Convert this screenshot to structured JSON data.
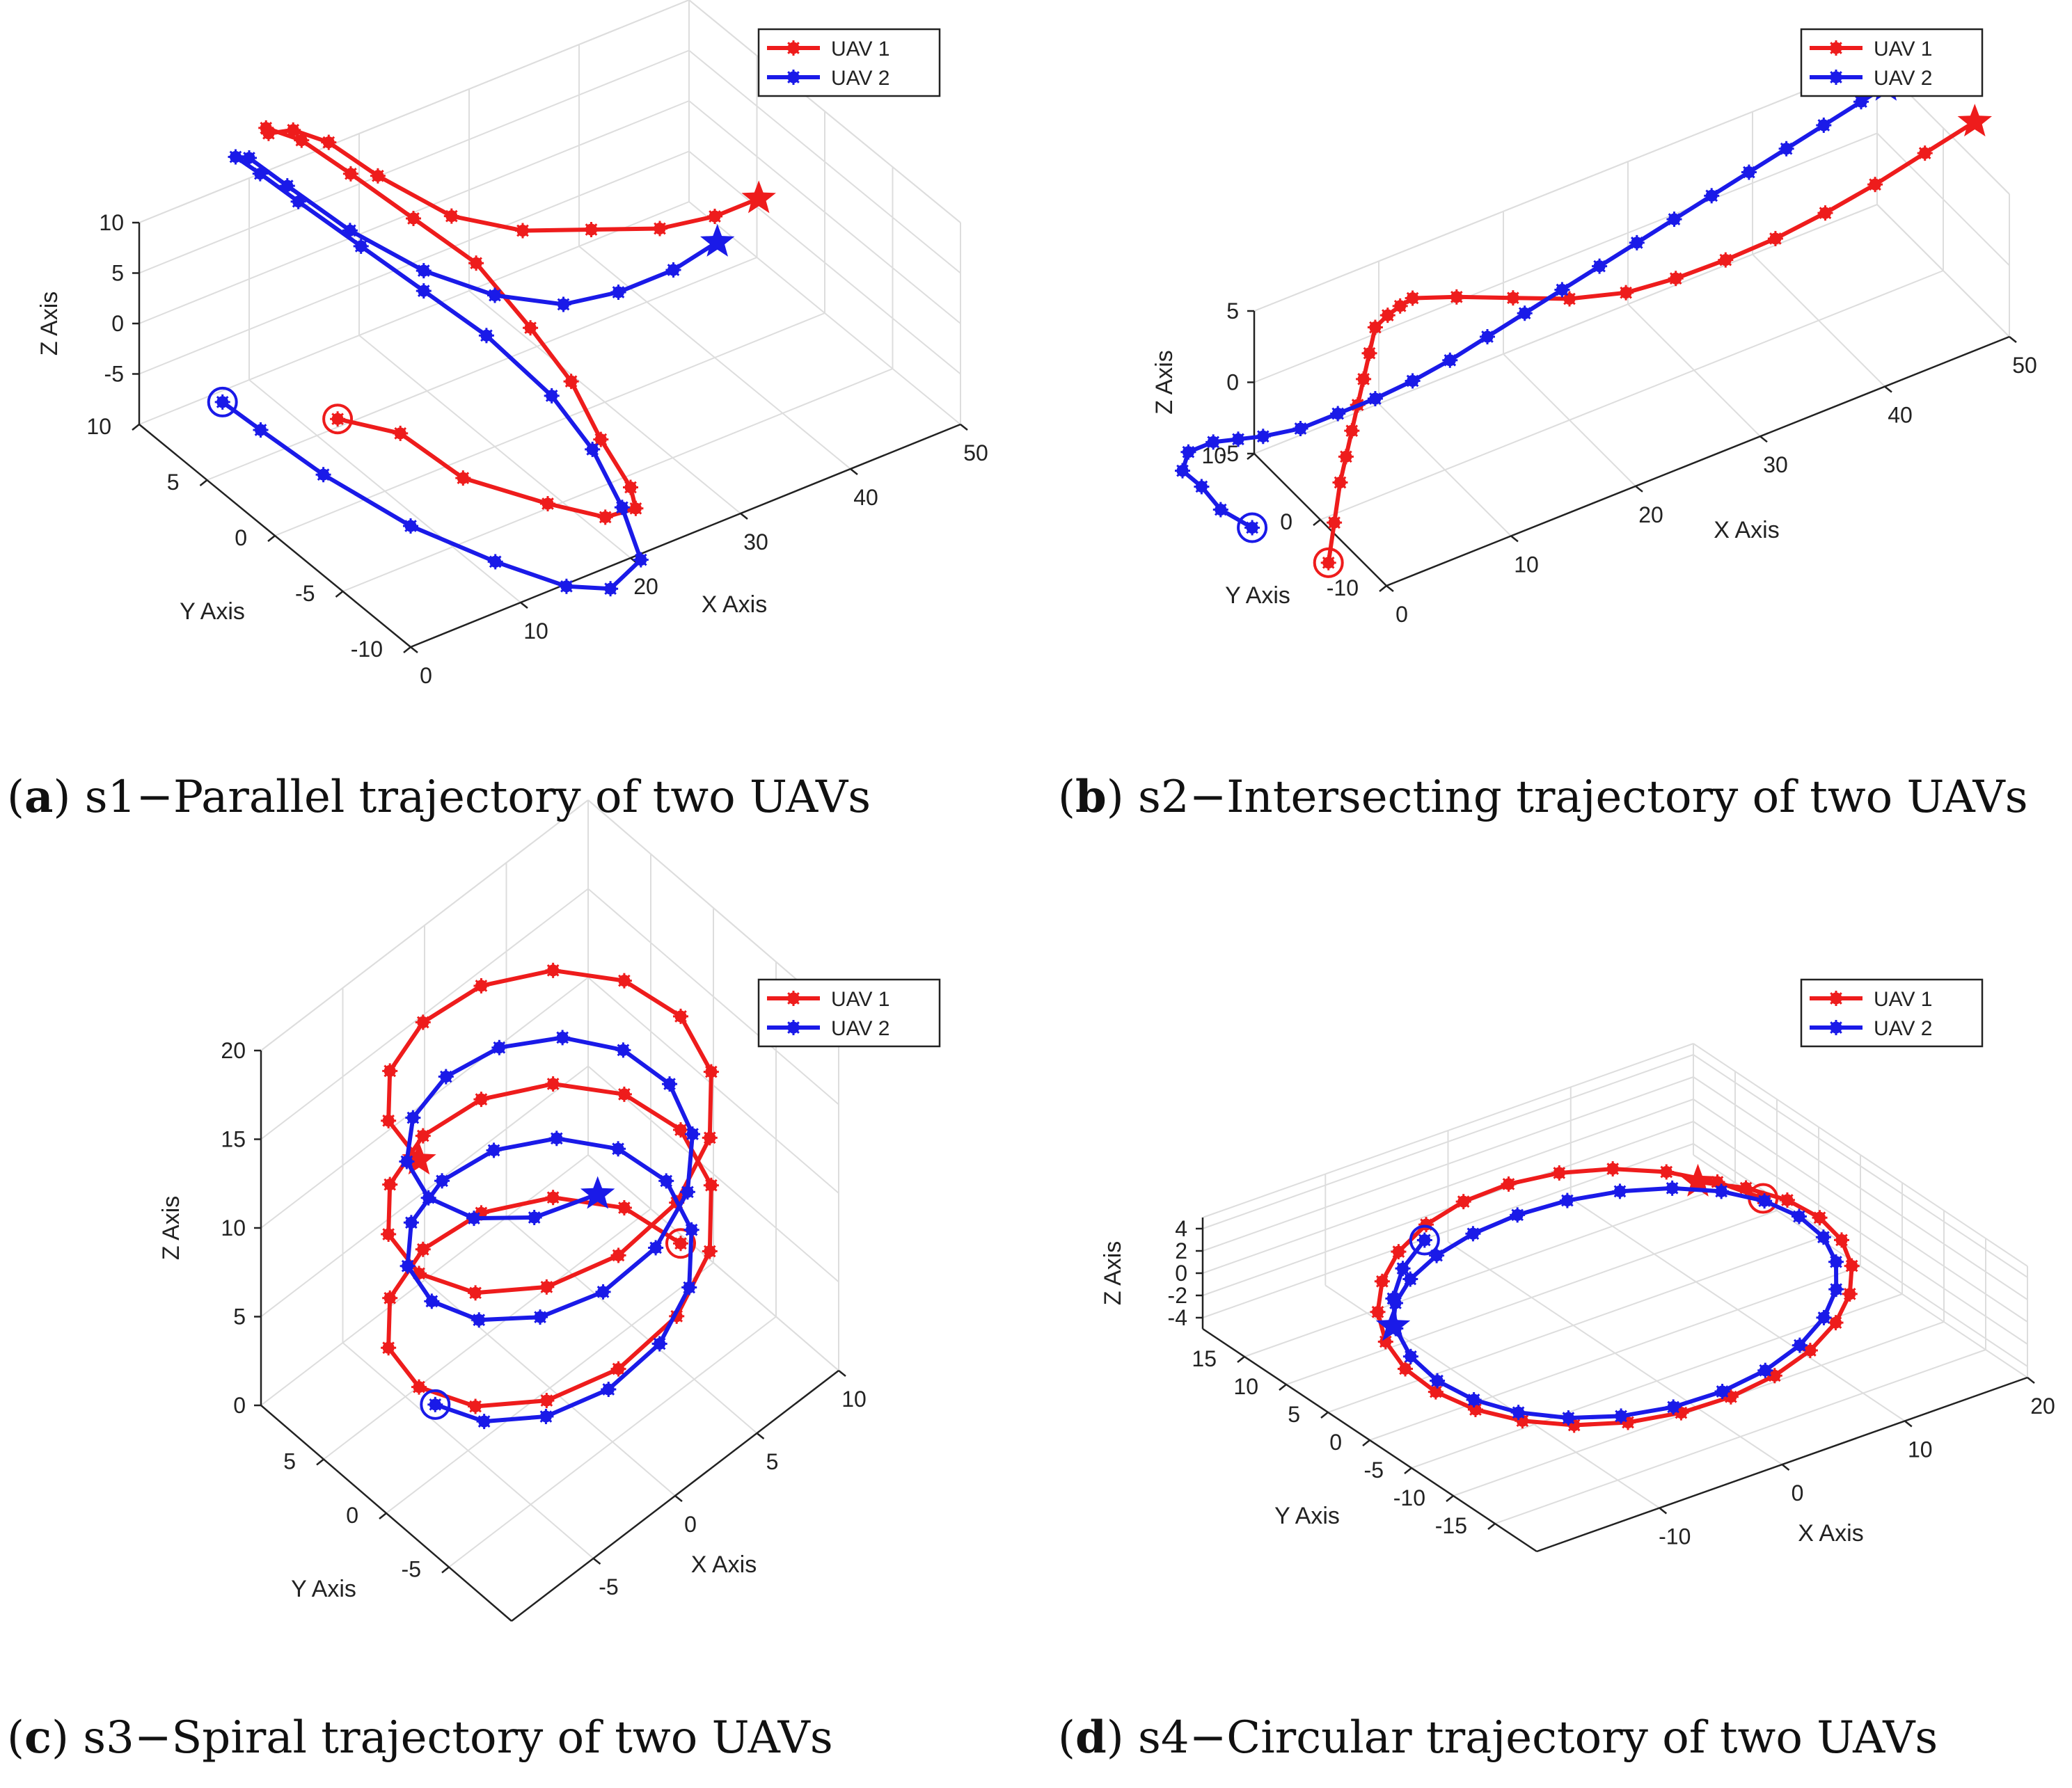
{
  "chart_data": [
    {
      "type": "line3d",
      "panel": "a",
      "caption_letter": "a",
      "caption_text": "s1−Parallel trajectory of two UAVs",
      "xlabel": "X Axis",
      "ylabel": "Y Axis",
      "zlabel": "Z Axis",
      "xlim": [
        0,
        50
      ],
      "ylim": [
        -10,
        10
      ],
      "zlim": [
        -10,
        10
      ],
      "xticks": [
        0,
        10,
        20,
        30,
        40,
        50
      ],
      "yticks": [
        -10,
        -5,
        0,
        5,
        10
      ],
      "zticks": [
        -5,
        0,
        5,
        10
      ],
      "grid": true,
      "legend_position": "top-right",
      "series": [
        {
          "name": "UAV 1",
          "color": "#ee1c1c",
          "points": [
            [
              2,
              -3,
              4
            ],
            [
              4,
              -6,
              5
            ],
            [
              6,
              -9,
              3
            ],
            [
              10,
              -12,
              2
            ],
            [
              14,
              -13,
              0
            ],
            [
              18,
              -12,
              -2
            ],
            [
              20,
              -10,
              -3
            ],
            [
              21,
              -7,
              -2
            ],
            [
              22,
              -4,
              0
            ],
            [
              22,
              -1,
              2
            ],
            [
              22,
              3,
              4
            ],
            [
              20,
              6,
              6
            ],
            [
              18,
              9,
              8
            ],
            [
              16,
              11,
              10
            ],
            [
              14,
              12,
              11
            ],
            [
              13,
              11,
              12
            ],
            [
              14,
              10,
              13
            ],
            [
              16,
              9,
              12
            ],
            [
              18,
              7,
              10
            ],
            [
              21,
              4,
              8
            ],
            [
              25,
              2,
              7
            ],
            [
              30,
              1,
              6
            ],
            [
              35,
              0,
              5
            ],
            [
              40,
              0,
              4
            ],
            [
              44,
              0,
              4
            ]
          ],
          "start": [
            2,
            -3,
            4
          ],
          "end": [
            44,
            0,
            4
          ]
        },
        {
          "name": "UAV 2",
          "color": "#1a1ae8",
          "points": [
            [
              -6,
              -1,
              7
            ],
            [
              -5,
              -3,
              6
            ],
            [
              -3,
              -6,
              4
            ],
            [
              0,
              -10,
              2
            ],
            [
              4,
              -13,
              0
            ],
            [
              8,
              -15,
              -2
            ],
            [
              12,
              -15,
              -4
            ],
            [
              16,
              -14,
              -4
            ],
            [
              18,
              -11,
              -3
            ],
            [
              19,
              -8,
              -1
            ],
            [
              19,
              -5,
              1
            ],
            [
              18,
              -1,
              3
            ],
            [
              16,
              2,
              5
            ],
            [
              14,
              5,
              7
            ],
            [
              12,
              8,
              9
            ],
            [
              11,
              10,
              10
            ],
            [
              10,
              11,
              11
            ],
            [
              10,
              10,
              12
            ],
            [
              11,
              8,
              11
            ],
            [
              13,
              5,
              9
            ],
            [
              16,
              2,
              7
            ],
            [
              20,
              0,
              5
            ],
            [
              25,
              -1,
              3
            ],
            [
              30,
              -1,
              2
            ],
            [
              35,
              -1,
              2
            ],
            [
              39,
              -1,
              3
            ]
          ],
          "start": [
            -6,
            -1,
            7
          ],
          "end": [
            39,
            -1,
            3
          ]
        }
      ]
    },
    {
      "type": "line3d",
      "panel": "b",
      "caption_letter": "b",
      "caption_text": "s2−Intersecting trajectory of two UAVs",
      "xlabel": "X Axis",
      "ylabel": "Y Axis",
      "zlabel": "Z Axis",
      "xlim": [
        0,
        50
      ],
      "ylim": [
        -10,
        10
      ],
      "zlim": [
        -5,
        5
      ],
      "xticks": [
        0,
        10,
        20,
        30,
        40,
        50
      ],
      "yticks": [
        -10,
        0,
        10
      ],
      "zticks": [
        -5,
        0,
        5
      ],
      "grid": true,
      "legend_position": "top-right",
      "series": [
        {
          "name": "UAV 1",
          "color": "#ee1c1c",
          "points": [
            [
              -2,
              -5,
              -5
            ],
            [
              -1,
              -4,
              -3
            ],
            [
              0,
              -3,
              -1
            ],
            [
              1,
              -2,
              0
            ],
            [
              2,
              -1,
              1
            ],
            [
              3,
              0,
              2
            ],
            [
              4,
              1,
              3
            ],
            [
              5,
              2,
              4
            ],
            [
              6,
              3,
              5
            ],
            [
              7,
              3,
              5.5
            ],
            [
              8,
              3,
              5.8
            ],
            [
              9,
              3,
              6
            ],
            [
              12,
              2,
              5.5
            ],
            [
              16,
              1,
              4.5
            ],
            [
              20,
              0,
              3.5
            ],
            [
              24,
              -1,
              3
            ],
            [
              28,
              -1,
              2.6
            ],
            [
              32,
              -1,
              2.5
            ],
            [
              36,
              -1,
              2.6
            ],
            [
              40,
              -1,
              3
            ],
            [
              44,
              -1,
              3.6
            ],
            [
              48,
              -1,
              4.4
            ],
            [
              52,
              -1,
              5.2
            ]
          ],
          "start": [
            -2,
            -5,
            -5
          ],
          "end": [
            52,
            -1,
            5.2
          ]
        },
        {
          "name": "UAV 2",
          "color": "#1a1ae8",
          "points": [
            [
              -6,
              -1,
              -3
            ],
            [
              -8,
              0,
              -1.5
            ],
            [
              -9,
              1,
              0
            ],
            [
              -10,
              2,
              1
            ],
            [
              -9,
              3,
              1.5
            ],
            [
              -7,
              3,
              1.5
            ],
            [
              -5,
              3,
              1
            ],
            [
              -3,
              3,
              0.5
            ],
            [
              0,
              3,
              0
            ],
            [
              3,
              3,
              0
            ],
            [
              6,
              3,
              0
            ],
            [
              9,
              3,
              0.2
            ],
            [
              12,
              3,
              0.6
            ],
            [
              15,
              3,
              1.2
            ],
            [
              18,
              3,
              1.8
            ],
            [
              21,
              3,
              2.4
            ],
            [
              24,
              3,
              3
            ],
            [
              27,
              3,
              3.6
            ],
            [
              30,
              3,
              4.2
            ],
            [
              33,
              3,
              4.8
            ],
            [
              36,
              3,
              5.4
            ],
            [
              39,
              3,
              6
            ],
            [
              42,
              3,
              6.6
            ],
            [
              45,
              3,
              7.2
            ],
            [
              47,
              3,
              7.6
            ]
          ],
          "start": [
            -6,
            -1,
            -3
          ],
          "end": [
            47,
            3,
            7.6
          ]
        }
      ]
    },
    {
      "type": "line3d",
      "panel": "c",
      "caption_letter": "c",
      "caption_text": "s3−Spiral trajectory of two UAVs",
      "xlabel": "X Axis",
      "ylabel": "Y Axis",
      "zlabel": "Z Axis",
      "xlim": [
        -10,
        10
      ],
      "ylim": [
        -10,
        10
      ],
      "zlim": [
        0,
        20
      ],
      "xticks": [
        -5,
        0,
        5,
        10
      ],
      "yticks": [
        -5,
        0,
        5
      ],
      "zticks": [
        0,
        5,
        10,
        15,
        20
      ],
      "grid": true,
      "legend_position": "top-right",
      "series": [
        {
          "name": "UAV 1",
          "color": "#ee1c1c",
          "spiral": {
            "cx": 0,
            "cy": 0,
            "r": 8,
            "turns": 2.5,
            "z0": 2.5,
            "z1": 18.5,
            "phase": 0.0,
            "n": 36
          },
          "start_index": 0,
          "end_index": 35
        },
        {
          "name": "UAV 2",
          "color": "#1a1ae8",
          "spiral": {
            "cx": 0,
            "cy": 0,
            "r": 7,
            "turns": 2.2,
            "z0": 4.0,
            "z1": 16.5,
            "phase": 3.14,
            "n": 32
          },
          "start_index": 0,
          "end_index": 31
        }
      ]
    },
    {
      "type": "line3d",
      "panel": "d",
      "caption_letter": "d",
      "caption_text": "s4−Circular trajectory of two UAVs",
      "xlabel": "X Axis",
      "ylabel": "Y Axis",
      "zlabel": "Z Axis",
      "xlim": [
        -20,
        20
      ],
      "ylim": [
        -20,
        20
      ],
      "zlim": [
        -5,
        5
      ],
      "xticks": [
        -10,
        0,
        10,
        20
      ],
      "yticks": [
        -15,
        -10,
        -5,
        0,
        5,
        10,
        15
      ],
      "zticks": [
        -4,
        -2,
        0,
        2,
        4
      ],
      "grid": true,
      "legend_position": "top-right",
      "series": [
        {
          "name": "UAV 1",
          "color": "#ee1c1c",
          "circle": {
            "r": 16,
            "z": 0,
            "phase": 0.3,
            "n": 30,
            "sweep": 6.6
          },
          "start_index": 0,
          "end_index": 29
        },
        {
          "name": "UAV 2",
          "color": "#1a1ae8",
          "circle": {
            "r": 15,
            "z": 0,
            "phase": 2.0,
            "n": 30,
            "sweep": 6.9
          },
          "start_index": 0,
          "end_index": 29
        }
      ]
    }
  ],
  "legend": {
    "uav1": "UAV 1",
    "uav2": "UAV 2"
  }
}
